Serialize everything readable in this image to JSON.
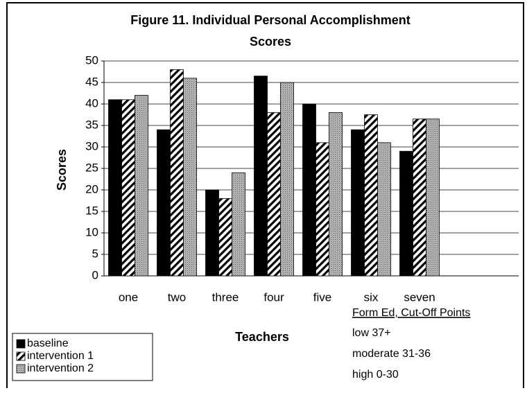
{
  "chart_data": {
    "type": "bar",
    "title": [
      "Figure 11. Individual Personal Accomplishment",
      "Scores"
    ],
    "x_label": "Teachers",
    "y_label": "Scores",
    "categories": [
      "one",
      "two",
      "three",
      "four",
      "five",
      "six",
      "seven"
    ],
    "series": [
      {
        "name": "baseline",
        "color": "#000000",
        "pattern": "solid",
        "values": [
          41,
          34,
          20,
          46.5,
          40,
          34,
          29
        ]
      },
      {
        "name": "intervention 1",
        "color": "#000000",
        "pattern": "hatch",
        "values": [
          41,
          48,
          18,
          38,
          31,
          37.5,
          36.5
        ]
      },
      {
        "name": "intervention 2",
        "color": "#999999",
        "pattern": "dots",
        "values": [
          42,
          46,
          24,
          45,
          38,
          31,
          36.5
        ]
      }
    ],
    "ylim": [
      0,
      50
    ],
    "yticks": [
      0,
      5,
      10,
      15,
      20,
      25,
      30,
      35,
      40,
      45,
      50
    ],
    "grid": true,
    "legend": "lower left",
    "annotations": [
      "Form Ed, Cut-Off Points",
      "low 37+",
      "moderate 31-36",
      "high 0-30"
    ]
  }
}
